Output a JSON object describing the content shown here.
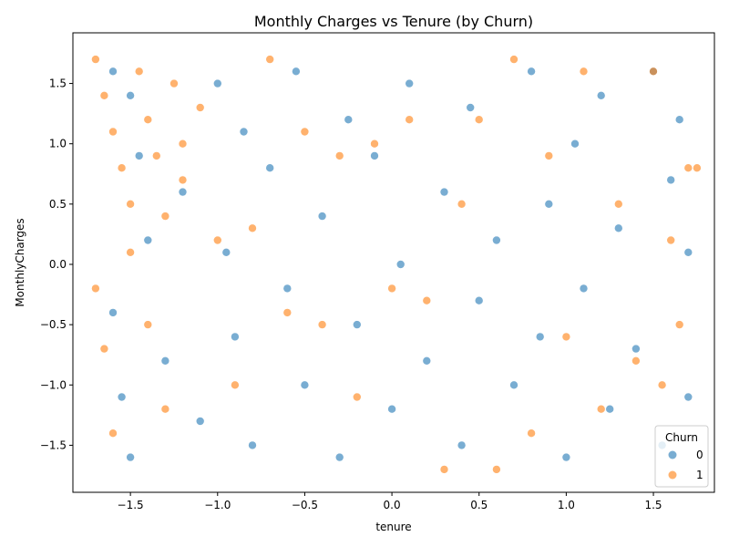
{
  "chart_data": {
    "type": "scatter",
    "title": "Monthly Charges vs Tenure (by Churn)",
    "xlabel": "tenure",
    "ylabel": "MonthlyCharges",
    "xlim": [
      -1.83,
      1.85
    ],
    "ylim": [
      -1.89,
      1.92
    ],
    "xticks": [
      -1.5,
      -1.0,
      -0.5,
      0.0,
      0.5,
      1.0,
      1.5
    ],
    "xtick_labels": [
      "−1.5",
      "−1.0",
      "−0.5",
      "0.0",
      "0.5",
      "1.0",
      "1.5"
    ],
    "yticks": [
      -1.5,
      -1.0,
      -0.5,
      0.0,
      0.5,
      1.0,
      1.5
    ],
    "ytick_labels": [
      "−1.5",
      "−1.0",
      "−0.5",
      "0.0",
      "0.5",
      "1.0",
      "1.5"
    ],
    "grid": false,
    "legend": {
      "title": "Churn",
      "placement": "bottom-right",
      "entries": [
        {
          "label": "0",
          "color": "#1f77b4"
        },
        {
          "label": "1",
          "color": "#ff7f0e"
        }
      ]
    },
    "series": [
      {
        "name": "0",
        "color": "#1f77b4",
        "alpha": 0.6,
        "points": [
          [
            -1.6,
            1.6
          ],
          [
            -1.5,
            1.4
          ],
          [
            -1.45,
            0.9
          ],
          [
            -1.4,
            0.2
          ],
          [
            -1.6,
            -0.4
          ],
          [
            -1.55,
            -1.1
          ],
          [
            -1.5,
            -1.6
          ],
          [
            -1.3,
            -0.8
          ],
          [
            -1.2,
            0.6
          ],
          [
            -1.1,
            -1.3
          ],
          [
            -1.0,
            1.5
          ],
          [
            -0.95,
            0.1
          ],
          [
            -0.9,
            -0.6
          ],
          [
            -0.85,
            1.1
          ],
          [
            -0.8,
            -1.5
          ],
          [
            -0.7,
            0.8
          ],
          [
            -0.6,
            -0.2
          ],
          [
            -0.55,
            1.6
          ],
          [
            -0.5,
            -1.0
          ],
          [
            -0.4,
            0.4
          ],
          [
            -0.3,
            -1.6
          ],
          [
            -0.25,
            1.2
          ],
          [
            -0.2,
            -0.5
          ],
          [
            -0.1,
            0.9
          ],
          [
            0.0,
            -1.2
          ],
          [
            0.05,
            0.0
          ],
          [
            0.1,
            1.5
          ],
          [
            0.2,
            -0.8
          ],
          [
            0.3,
            0.6
          ],
          [
            0.4,
            -1.5
          ],
          [
            0.45,
            1.3
          ],
          [
            0.5,
            -0.3
          ],
          [
            0.6,
            0.2
          ],
          [
            0.7,
            -1.0
          ],
          [
            0.8,
            1.6
          ],
          [
            0.85,
            -0.6
          ],
          [
            0.9,
            0.5
          ],
          [
            1.0,
            -1.6
          ],
          [
            1.05,
            1.0
          ],
          [
            1.1,
            -0.2
          ],
          [
            1.2,
            1.4
          ],
          [
            1.25,
            -1.2
          ],
          [
            1.3,
            0.3
          ],
          [
            1.4,
            -0.7
          ],
          [
            1.5,
            1.6
          ],
          [
            1.55,
            -1.5
          ],
          [
            1.6,
            0.7
          ],
          [
            1.7,
            -1.1
          ],
          [
            1.7,
            0.1
          ],
          [
            1.65,
            1.2
          ]
        ]
      },
      {
        "name": "1",
        "color": "#ff7f0e",
        "alpha": 0.6,
        "points": [
          [
            -1.7,
            1.7
          ],
          [
            -1.65,
            1.4
          ],
          [
            -1.6,
            1.1
          ],
          [
            -1.55,
            0.8
          ],
          [
            -1.5,
            0.5
          ],
          [
            -1.45,
            1.6
          ],
          [
            -1.4,
            1.2
          ],
          [
            -1.35,
            0.9
          ],
          [
            -1.3,
            0.4
          ],
          [
            -1.25,
            1.5
          ],
          [
            -1.2,
            1.0
          ],
          [
            -1.7,
            -0.2
          ],
          [
            -1.65,
            -0.7
          ],
          [
            -1.6,
            -1.4
          ],
          [
            -1.5,
            0.1
          ],
          [
            -1.4,
            -0.5
          ],
          [
            -1.3,
            -1.2
          ],
          [
            -1.2,
            0.7
          ],
          [
            -1.1,
            1.3
          ],
          [
            -1.0,
            0.2
          ],
          [
            -0.9,
            -1.0
          ],
          [
            -0.8,
            0.3
          ],
          [
            -0.7,
            1.7
          ],
          [
            -0.6,
            -0.4
          ],
          [
            -0.5,
            1.1
          ],
          [
            -0.4,
            -0.5
          ],
          [
            -0.3,
            0.9
          ],
          [
            -0.2,
            -1.1
          ],
          [
            -0.1,
            1.0
          ],
          [
            0.0,
            -0.2
          ],
          [
            0.1,
            1.2
          ],
          [
            0.2,
            -0.3
          ],
          [
            0.3,
            -1.7
          ],
          [
            0.4,
            0.5
          ],
          [
            0.5,
            1.2
          ],
          [
            0.6,
            -1.7
          ],
          [
            0.7,
            1.7
          ],
          [
            0.8,
            -1.4
          ],
          [
            0.9,
            0.9
          ],
          [
            1.0,
            -0.6
          ],
          [
            1.1,
            1.6
          ],
          [
            1.2,
            -1.2
          ],
          [
            1.3,
            0.5
          ],
          [
            1.4,
            -0.8
          ],
          [
            1.5,
            1.6
          ],
          [
            1.55,
            -1.0
          ],
          [
            1.6,
            0.2
          ],
          [
            1.7,
            0.8
          ],
          [
            1.75,
            0.8
          ],
          [
            1.65,
            -0.5
          ]
        ]
      }
    ]
  }
}
